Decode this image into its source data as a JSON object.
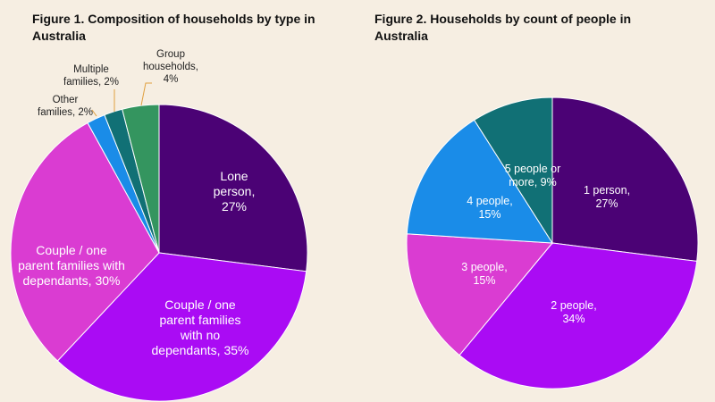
{
  "chart_data": [
    {
      "type": "pie",
      "title": "Figure 1. Composition of households by type in Australia",
      "labels": [
        "Lone person, 27%",
        "Couple / one parent families with no dependants, 35%",
        "Couple / one parent families with dependants, 30%",
        "Other families, 2%",
        "Multiple families, 2%",
        "Group households, 4%"
      ],
      "values": [
        27,
        35,
        30,
        2,
        2,
        4
      ],
      "colors": [
        "#4b0275",
        "#aa0bf4",
        "#da3cd2",
        "#1a8ce8",
        "#117075",
        "#34955f"
      ]
    },
    {
      "type": "pie",
      "title": "Figure 2. Households by count of people in Australia",
      "labels": [
        "1 person, 27%",
        "2 people, 34%",
        "3 people, 15%",
        "4 people, 15%",
        "5 people or more, 9%"
      ],
      "values": [
        27,
        34,
        15,
        15,
        9
      ],
      "colors": [
        "#4b0275",
        "#aa0bf4",
        "#da3cd2",
        "#1a8ce8",
        "#117075"
      ]
    }
  ]
}
